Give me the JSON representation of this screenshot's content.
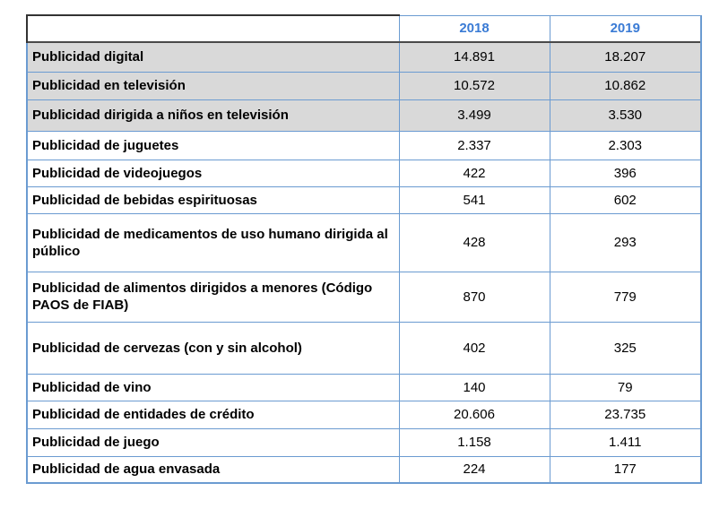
{
  "header": {
    "col1": "",
    "col2": "2018",
    "col3": "2019"
  },
  "rows": [
    {
      "label": "Publicidad digital",
      "v2018": "14.891",
      "v2019": "18.207",
      "shaded": true
    },
    {
      "label": "Publicidad en televisión",
      "v2018": "10.572",
      "v2019": "10.862",
      "shaded": true
    },
    {
      "label": "Publicidad dirigida a niños en televisión",
      "v2018": "3.499",
      "v2019": "3.530",
      "shaded": true
    },
    {
      "label": "Publicidad de juguetes",
      "v2018": "2.337",
      "v2019": "2.303",
      "shaded": false
    },
    {
      "label": "Publicidad de videojuegos",
      "v2018": "422",
      "v2019": "396",
      "shaded": false
    },
    {
      "label": "Publicidad de bebidas espirituosas",
      "v2018": "541",
      "v2019": "602",
      "shaded": false
    },
    {
      "label": "Publicidad de medicamentos de uso humano dirigida al público",
      "v2018": "428",
      "v2019": "293",
      "shaded": false
    },
    {
      "label": "Publicidad de alimentos dirigidos a menores (Código PAOS de FIAB)",
      "v2018": "870",
      "v2019": "779",
      "shaded": false
    },
    {
      "label": "Publicidad de cervezas (con y sin alcohol)",
      "v2018": "402",
      "v2019": "325",
      "shaded": false
    },
    {
      "label": "Publicidad de vino",
      "v2018": "140",
      "v2019": "79",
      "shaded": false
    },
    {
      "label": "Publicidad de entidades de crédito",
      "v2018": "20.606",
      "v2019": "23.735",
      "shaded": false
    },
    {
      "label": "Publicidad de juego",
      "v2018": "1.158",
      "v2019": "1.411",
      "shaded": false
    },
    {
      "label": "Publicidad de agua envasada",
      "v2018": "224",
      "v2019": "177",
      "shaded": false
    }
  ]
}
